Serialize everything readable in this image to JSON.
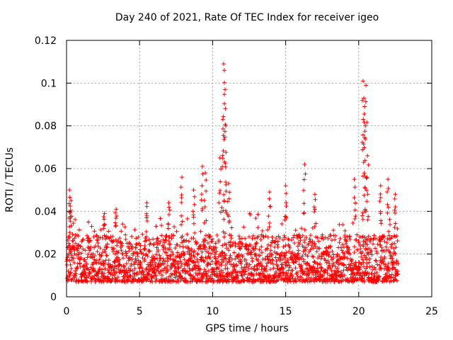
{
  "chart_data": {
    "type": "scatter",
    "title": "Day 240 of 2021, Rate Of TEC Index for receiver igeo",
    "xlabel": "GPS time / hours",
    "ylabel": "ROTI / TECUs",
    "xlim": [
      0,
      25
    ],
    "ylim": [
      0,
      0.12
    ],
    "xticks": [
      "0",
      "5",
      "10",
      "15",
      "20",
      "25"
    ],
    "yticks": [
      "0",
      "0.02",
      "0.04",
      "0.06",
      "0.08",
      "0.1",
      "0.12"
    ],
    "grid": true,
    "marker": "+",
    "color": "#ff0000",
    "series": [
      {
        "name": "ROTI",
        "x_range": [
          0,
          22.7
        ],
        "typical_range": [
          0.005,
          0.03
        ],
        "peaks": [
          {
            "x": 0.2,
            "y": 0.05
          },
          {
            "x": 0.3,
            "y": 0.045
          },
          {
            "x": 2.6,
            "y": 0.039
          },
          {
            "x": 3.4,
            "y": 0.041
          },
          {
            "x": 5.5,
            "y": 0.044
          },
          {
            "x": 7.0,
            "y": 0.044
          },
          {
            "x": 7.9,
            "y": 0.056
          },
          {
            "x": 8.7,
            "y": 0.05
          },
          {
            "x": 9.3,
            "y": 0.061
          },
          {
            "x": 9.5,
            "y": 0.058
          },
          {
            "x": 10.5,
            "y": 0.065
          },
          {
            "x": 10.7,
            "y": 0.083
          },
          {
            "x": 10.75,
            "y": 0.109
          },
          {
            "x": 10.8,
            "y": 0.106
          },
          {
            "x": 10.85,
            "y": 0.097
          },
          {
            "x": 10.9,
            "y": 0.08
          },
          {
            "x": 11.1,
            "y": 0.053
          },
          {
            "x": 13.9,
            "y": 0.049
          },
          {
            "x": 15.0,
            "y": 0.052
          },
          {
            "x": 16.3,
            "y": 0.062
          },
          {
            "x": 17.0,
            "y": 0.048
          },
          {
            "x": 19.7,
            "y": 0.055
          },
          {
            "x": 20.3,
            "y": 0.101
          },
          {
            "x": 20.35,
            "y": 0.093
          },
          {
            "x": 20.4,
            "y": 0.089
          },
          {
            "x": 20.45,
            "y": 0.08
          },
          {
            "x": 20.5,
            "y": 0.099
          },
          {
            "x": 20.6,
            "y": 0.066
          },
          {
            "x": 21.5,
            "y": 0.052
          },
          {
            "x": 22.0,
            "y": 0.055
          },
          {
            "x": 22.5,
            "y": 0.048
          }
        ]
      }
    ]
  }
}
